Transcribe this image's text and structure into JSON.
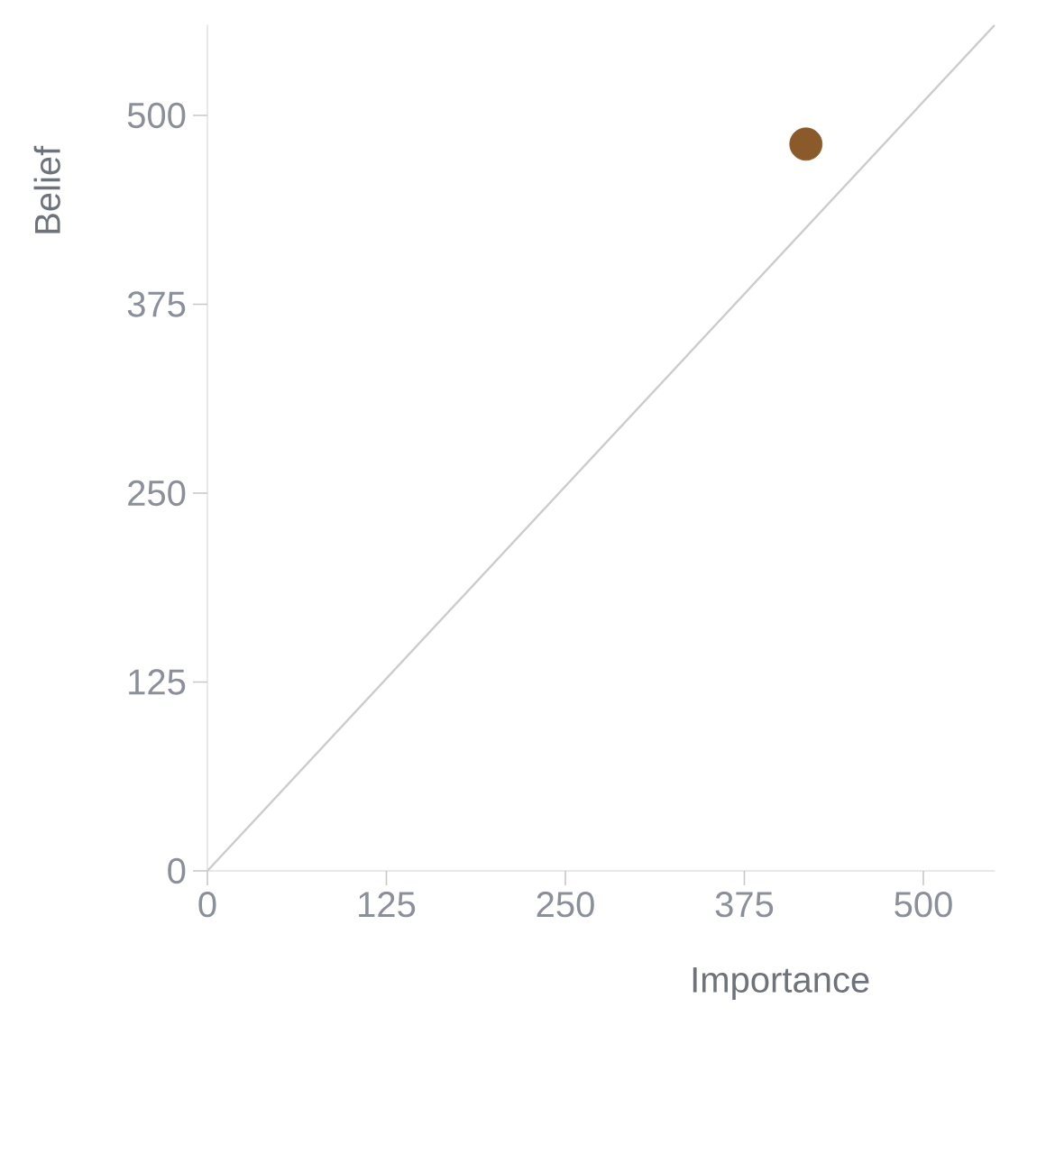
{
  "chart_data": {
    "type": "scatter",
    "xlabel": "Importance",
    "ylabel": "Belief",
    "xlim": [
      0,
      550
    ],
    "ylim": [
      0,
      560
    ],
    "xticks": [
      0,
      125,
      250,
      375,
      500
    ],
    "yticks": [
      0,
      125,
      250,
      375,
      500
    ],
    "grid": false,
    "series": [
      {
        "type": "line",
        "color": "#cccccc",
        "x": [
          0,
          550
        ],
        "values": [
          0,
          560
        ],
        "marker": "none",
        "line_style": "solid"
      },
      {
        "color": "#8b5a2b",
        "x": [
          418
        ],
        "values": [
          481
        ],
        "marker": "circle"
      }
    ]
  }
}
